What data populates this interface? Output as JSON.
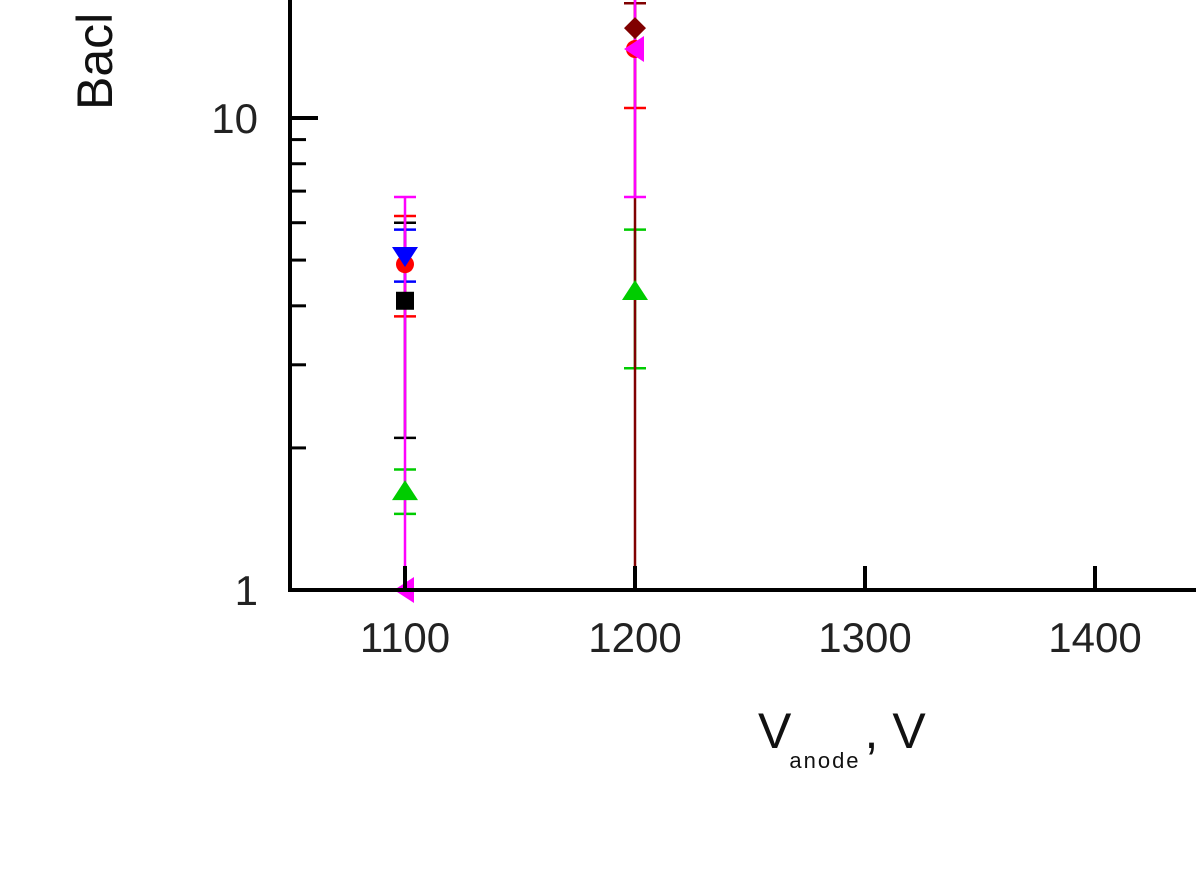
{
  "chart_data": {
    "type": "scatter",
    "y_scale": "log",
    "xlim": [
      1050,
      1450
    ],
    "ylim": [
      1,
      45
    ],
    "x_ticks": [
      1100,
      1200,
      1300,
      1400
    ],
    "x_tick_labels": [
      "1100",
      "1200",
      "1300",
      "1400"
    ],
    "y_ticks": [
      1,
      10
    ],
    "y_tick_labels": [
      "1",
      "10"
    ],
    "xlabel": {
      "main": "V",
      "sub": "anode",
      "suffix": ", V"
    },
    "ylabel": "Bacl",
    "grid": false,
    "series": [
      {
        "color": "#000000",
        "marker": "square",
        "points": [
          {
            "x": 1100,
            "y": 4.1,
            "err_lo": 2.1,
            "err_hi": 6.0
          }
        ]
      },
      {
        "color": "#ff0000",
        "marker": "circle",
        "points": [
          {
            "x": 1100,
            "y": 4.9,
            "err_lo": 3.8,
            "err_hi": 6.2
          },
          {
            "x": 1200,
            "y": 14.0,
            "err_lo": 10.5,
            "err_hi": 18.0
          }
        ]
      },
      {
        "color": "#00cc00",
        "marker": "triangle-up",
        "points": [
          {
            "x": 1100,
            "y": 1.62,
            "err_lo": 1.45,
            "err_hi": 1.8
          },
          {
            "x": 1200,
            "y": 4.3,
            "err_lo": 2.95,
            "err_hi": 5.8
          }
        ]
      },
      {
        "color": "#0000ff",
        "marker": "triangle-down",
        "points": [
          {
            "x": 1100,
            "y": 5.1,
            "err_lo": 4.5,
            "err_hi": 5.8
          }
        ]
      },
      {
        "color": "#800000",
        "marker": "diamond",
        "points": [
          {
            "x": 1200,
            "y": 15.5,
            "err_lo": 1.0,
            "err_hi": 17.5
          }
        ]
      },
      {
        "color": "#ff00ff",
        "marker": "triangle-left",
        "points": [
          {
            "x": 1100,
            "y": 1.0,
            "err_lo": 1.0,
            "err_hi": 6.8
          },
          {
            "x": 1200,
            "y": 14.0,
            "err_lo": 6.8,
            "err_hi": 45.0
          }
        ]
      }
    ]
  }
}
